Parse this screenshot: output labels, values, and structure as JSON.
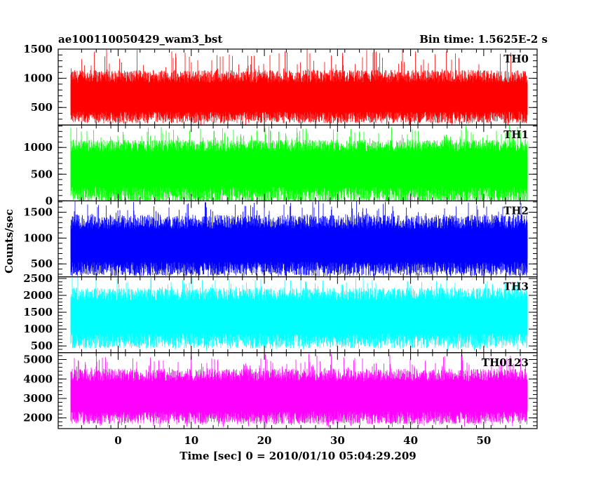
{
  "header": {
    "title": "ae100110050429_wam3_bst",
    "bin_time": "Bin time: 1.5625E-2 s"
  },
  "ylabel": "Counts/sec",
  "xlabel": "Time [sec] 0 = 2010/01/10 05:04:29.209",
  "chart_data": {
    "type": "line",
    "x_range": [
      -8.2,
      57.3
    ],
    "x_ticks": [
      0,
      10,
      20,
      30,
      40,
      50
    ],
    "x_tick_labels": [
      "0",
      "10",
      "20",
      "30",
      "40",
      "50"
    ],
    "x_data_range": [
      -6.5,
      56.0
    ],
    "grid": false,
    "panels": [
      {
        "name": "TH0",
        "color": "#ff0000",
        "ylim": [
          200,
          1500
        ],
        "y_ticks": [
          500,
          1000,
          1500
        ],
        "y_tick_labels": [
          "500",
          "1000",
          "1500"
        ],
        "typical_min": 330,
        "typical_max": 1100,
        "mean": 660,
        "extreme_min": 200,
        "extreme_max": 1500
      },
      {
        "name": "TH1",
        "color": "#00ff00",
        "ylim": [
          0,
          1420
        ],
        "y_ticks": [
          0,
          500,
          1000
        ],
        "y_tick_labels": [
          "0",
          "500",
          "1000"
        ],
        "typical_min": 100,
        "typical_max": 1100,
        "mean": 650,
        "extreme_min": 0,
        "extreme_max": 1420
      },
      {
        "name": "TH2",
        "color": "#0000ff",
        "ylim": [
          250,
          1720
        ],
        "y_ticks": [
          500,
          1000,
          1500
        ],
        "y_tick_labels": [
          "500",
          "1000",
          "1500"
        ],
        "typical_min": 400,
        "typical_max": 1400,
        "mean": 850,
        "extreme_min": 250,
        "extreme_max": 1720
      },
      {
        "name": "TH3",
        "color": "#00ffff",
        "ylim": [
          300,
          2550
        ],
        "y_ticks": [
          500,
          1000,
          1500,
          2000,
          2500
        ],
        "y_tick_labels": [
          "500",
          "1000",
          "1500",
          "2000",
          "2500"
        ],
        "typical_min": 650,
        "typical_max": 2150,
        "mean": 1400,
        "extreme_min": 350,
        "extreme_max": 2550
      },
      {
        "name": "TH0123",
        "color": "#ff00ff",
        "ylim": [
          1450,
          5350
        ],
        "y_ticks": [
          2000,
          3000,
          4000,
          5000
        ],
        "y_tick_labels": [
          "2000",
          "3000",
          "4000",
          "5000"
        ],
        "typical_min": 2000,
        "typical_max": 4400,
        "mean": 3100,
        "extreme_min": 1500,
        "extreme_max": 5300
      }
    ]
  }
}
